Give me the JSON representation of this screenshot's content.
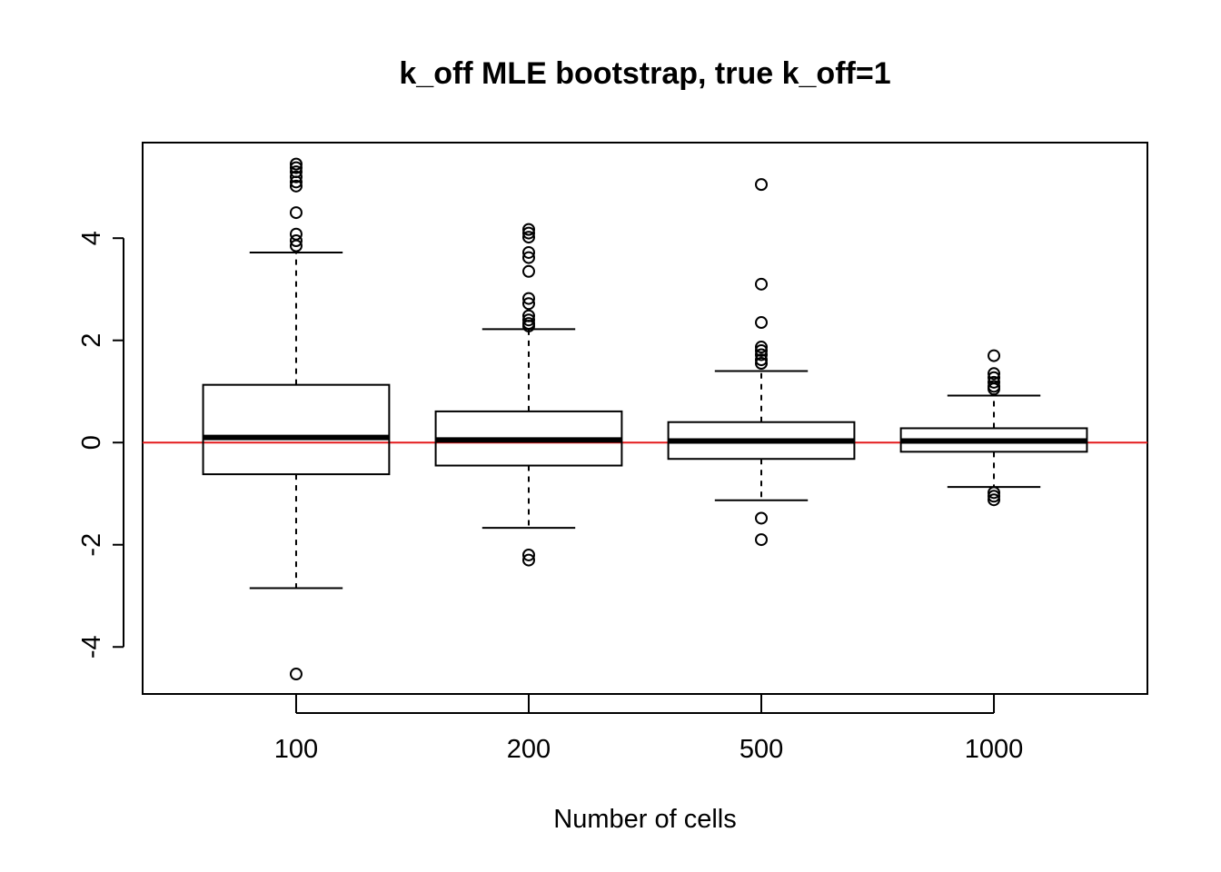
{
  "chart_data": {
    "type": "boxplot",
    "title": "k_off MLE bootstrap, true k_off=1",
    "xlabel": "Number of cells",
    "ylabel": "",
    "categories": [
      "100",
      "200",
      "500",
      "1000"
    ],
    "y_ticks": [
      -4,
      -2,
      0,
      2,
      4
    ],
    "y_tick_labels": [
      "-4",
      "-2",
      "0",
      "2",
      "4"
    ],
    "ylim": [
      -4.92,
      5.87
    ],
    "reference_line": {
      "y": 0,
      "color": "#e31a1c"
    },
    "grid": false,
    "legend": "none",
    "boxes": [
      {
        "category": "100",
        "whisker_low": -2.85,
        "q1": -0.62,
        "median": 0.1,
        "q3": 1.13,
        "whisker_high": 3.72,
        "outliers": [
          5.45,
          5.38,
          5.3,
          5.2,
          5.1,
          5.02,
          4.5,
          4.08,
          3.95,
          3.85,
          -4.53
        ]
      },
      {
        "category": "200",
        "whisker_low": -1.67,
        "q1": -0.45,
        "median": 0.05,
        "q3": 0.61,
        "whisker_high": 2.22,
        "outliers": [
          4.17,
          4.1,
          4.02,
          3.72,
          3.62,
          3.35,
          2.82,
          2.72,
          2.48,
          2.4,
          2.33,
          2.28,
          -2.2,
          -2.3
        ]
      },
      {
        "category": "500",
        "whisker_low": -1.13,
        "q1": -0.32,
        "median": 0.03,
        "q3": 0.4,
        "whisker_high": 1.4,
        "outliers": [
          5.05,
          3.1,
          2.35,
          1.87,
          1.8,
          1.72,
          1.62,
          1.55,
          -1.48,
          -1.9
        ]
      },
      {
        "category": "1000",
        "whisker_low": -0.87,
        "q1": -0.18,
        "median": 0.03,
        "q3": 0.28,
        "whisker_high": 0.92,
        "outliers": [
          1.7,
          1.35,
          1.27,
          1.18,
          1.1,
          1.05,
          -0.98,
          -1.05,
          -1.12
        ]
      }
    ]
  }
}
